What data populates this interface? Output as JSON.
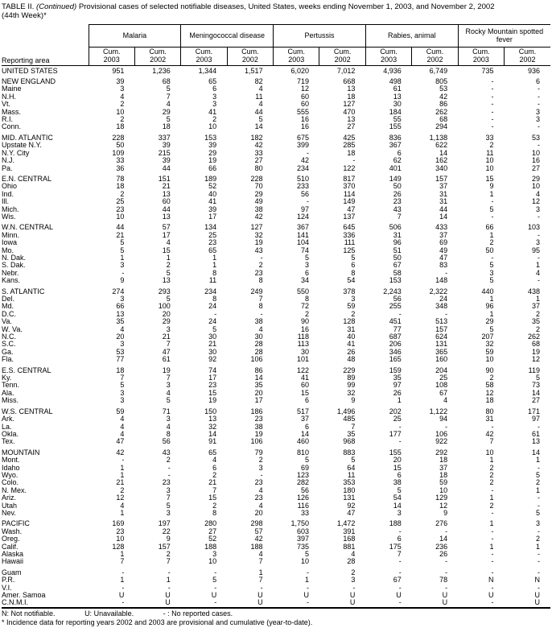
{
  "title": {
    "prefix": "TABLE II.",
    "continued": "(Continued)",
    "rest": "Provisional cases of selected notifiable diseases, United States, weeks ending November 1, 2003, and November 2, 2002",
    "line2": "(44th Week)*"
  },
  "table": {
    "row_header": "Reporting area",
    "col_groups": [
      "Malaria",
      "Meningococcal disease",
      "Pertussis",
      "Rabies, animal",
      "Rocky Mountain spotted fever"
    ],
    "sub_col_top": "Cum.",
    "sub_col_years": [
      "2003",
      "2002"
    ],
    "sections": [
      {
        "rows": [
          [
            "UNITED STATES",
            "951",
            "1,236",
            "1,344",
            "1,517",
            "6,020",
            "7,012",
            "4,936",
            "6,749",
            "735",
            "936"
          ]
        ]
      },
      {
        "rows": [
          [
            "NEW ENGLAND",
            "39",
            "68",
            "65",
            "82",
            "719",
            "668",
            "498",
            "805",
            "-",
            "6"
          ],
          [
            "Maine",
            "3",
            "5",
            "6",
            "4",
            "12",
            "13",
            "61",
            "53",
            "-",
            "-"
          ],
          [
            "N.H.",
            "4",
            "7",
            "3",
            "11",
            "60",
            "18",
            "13",
            "42",
            "-",
            "-"
          ],
          [
            "Vt.",
            "2",
            "4",
            "3",
            "4",
            "60",
            "127",
            "30",
            "86",
            "-",
            "-"
          ],
          [
            "Mass.",
            "10",
            "29",
            "41",
            "44",
            "555",
            "470",
            "184",
            "262",
            "-",
            "3"
          ],
          [
            "R.I.",
            "2",
            "5",
            "2",
            "5",
            "16",
            "13",
            "55",
            "68",
            "-",
            "3"
          ],
          [
            "Conn.",
            "18",
            "18",
            "10",
            "14",
            "16",
            "27",
            "155",
            "294",
            "-",
            "-"
          ]
        ]
      },
      {
        "rows": [
          [
            "MID. ATLANTIC",
            "228",
            "337",
            "153",
            "182",
            "675",
            "425",
            "836",
            "1,138",
            "33",
            "53"
          ],
          [
            "Upstate N.Y.",
            "50",
            "39",
            "39",
            "42",
            "399",
            "285",
            "367",
            "622",
            "2",
            "-"
          ],
          [
            "N.Y. City",
            "109",
            "215",
            "29",
            "33",
            "-",
            "18",
            "6",
            "14",
            "11",
            "10"
          ],
          [
            "N.J.",
            "33",
            "39",
            "19",
            "27",
            "42",
            "-",
            "62",
            "162",
            "10",
            "16"
          ],
          [
            "Pa.",
            "36",
            "44",
            "66",
            "80",
            "234",
            "122",
            "401",
            "340",
            "10",
            "27"
          ]
        ]
      },
      {
        "rows": [
          [
            "E.N. CENTRAL",
            "78",
            "151",
            "189",
            "228",
            "510",
            "817",
            "149",
            "157",
            "15",
            "29"
          ],
          [
            "Ohio",
            "18",
            "21",
            "52",
            "70",
            "233",
            "370",
            "50",
            "37",
            "9",
            "10"
          ],
          [
            "Ind.",
            "2",
            "13",
            "40",
            "29",
            "56",
            "114",
            "26",
            "31",
            "1",
            "4"
          ],
          [
            "Ill.",
            "25",
            "60",
            "41",
            "49",
            "-",
            "149",
            "23",
            "31",
            "-",
            "12"
          ],
          [
            "Mich.",
            "23",
            "44",
            "39",
            "38",
            "97",
            "47",
            "43",
            "44",
            "5",
            "3"
          ],
          [
            "Wis.",
            "10",
            "13",
            "17",
            "42",
            "124",
            "137",
            "7",
            "14",
            "-",
            "-"
          ]
        ]
      },
      {
        "rows": [
          [
            "W.N. CENTRAL",
            "44",
            "57",
            "134",
            "127",
            "367",
            "645",
            "506",
            "433",
            "66",
            "103"
          ],
          [
            "Minn.",
            "21",
            "17",
            "25",
            "32",
            "141",
            "336",
            "31",
            "37",
            "1",
            "-"
          ],
          [
            "Iowa",
            "5",
            "4",
            "23",
            "19",
            "104",
            "111",
            "96",
            "69",
            "2",
            "3"
          ],
          [
            "Mo.",
            "5",
            "15",
            "65",
            "43",
            "74",
            "125",
            "51",
            "49",
            "50",
            "95"
          ],
          [
            "N. Dak.",
            "1",
            "1",
            "1",
            "-",
            "5",
            "5",
            "50",
            "47",
            "-",
            "-"
          ],
          [
            "S. Dak.",
            "3",
            "2",
            "1",
            "2",
            "3",
            "6",
            "67",
            "83",
            "5",
            "1"
          ],
          [
            "Nebr.",
            "-",
            "5",
            "8",
            "23",
            "6",
            "8",
            "58",
            "-",
            "3",
            "4"
          ],
          [
            "Kans.",
            "9",
            "13",
            "11",
            "8",
            "34",
            "54",
            "153",
            "148",
            "5",
            "-"
          ]
        ]
      },
      {
        "rows": [
          [
            "S. ATLANTIC",
            "274",
            "293",
            "234",
            "249",
            "550",
            "378",
            "2,243",
            "2,322",
            "440",
            "438"
          ],
          [
            "Del.",
            "3",
            "5",
            "8",
            "7",
            "8",
            "3",
            "56",
            "24",
            "1",
            "1"
          ],
          [
            "Md.",
            "66",
            "100",
            "24",
            "8",
            "72",
            "59",
            "255",
            "348",
            "96",
            "37"
          ],
          [
            "D.C.",
            "13",
            "20",
            "-",
            "-",
            "2",
            "2",
            "-",
            "-",
            "1",
            "2"
          ],
          [
            "Va.",
            "35",
            "29",
            "24",
            "38",
            "90",
            "128",
            "451",
            "513",
            "29",
            "35"
          ],
          [
            "W. Va.",
            "4",
            "3",
            "5",
            "4",
            "16",
            "31",
            "77",
            "157",
            "5",
            "2"
          ],
          [
            "N.C.",
            "20",
            "21",
            "30",
            "30",
            "118",
            "40",
            "687",
            "624",
            "207",
            "262"
          ],
          [
            "S.C.",
            "3",
            "7",
            "21",
            "28",
            "113",
            "41",
            "206",
            "131",
            "32",
            "68"
          ],
          [
            "Ga.",
            "53",
            "47",
            "30",
            "28",
            "30",
            "26",
            "346",
            "365",
            "59",
            "19"
          ],
          [
            "Fla.",
            "77",
            "61",
            "92",
            "106",
            "101",
            "48",
            "165",
            "160",
            "10",
            "12"
          ]
        ]
      },
      {
        "rows": [
          [
            "E.S. CENTRAL",
            "18",
            "19",
            "74",
            "86",
            "122",
            "229",
            "159",
            "204",
            "90",
            "119"
          ],
          [
            "Ky.",
            "7",
            "7",
            "17",
            "14",
            "41",
            "89",
            "35",
            "25",
            "2",
            "5"
          ],
          [
            "Tenn.",
            "5",
            "3",
            "23",
            "35",
            "60",
            "99",
            "97",
            "108",
            "58",
            "73"
          ],
          [
            "Ala.",
            "3",
            "4",
            "15",
            "20",
            "15",
            "32",
            "26",
            "67",
            "12",
            "14"
          ],
          [
            "Miss.",
            "3",
            "5",
            "19",
            "17",
            "6",
            "9",
            "1",
            "4",
            "18",
            "27"
          ]
        ]
      },
      {
        "rows": [
          [
            "W.S. CENTRAL",
            "59",
            "71",
            "150",
            "186",
            "517",
            "1,496",
            "202",
            "1,122",
            "80",
            "171"
          ],
          [
            "Ark.",
            "4",
            "3",
            "13",
            "23",
            "37",
            "485",
            "25",
            "94",
            "31",
            "97"
          ],
          [
            "La.",
            "4",
            "4",
            "32",
            "38",
            "6",
            "7",
            "-",
            "-",
            "-",
            "-"
          ],
          [
            "Okla.",
            "4",
            "8",
            "14",
            "19",
            "14",
            "35",
            "177",
            "106",
            "42",
            "61"
          ],
          [
            "Tex.",
            "47",
            "56",
            "91",
            "106",
            "460",
            "968",
            "-",
            "922",
            "7",
            "13"
          ]
        ]
      },
      {
        "rows": [
          [
            "MOUNTAIN",
            "42",
            "43",
            "65",
            "79",
            "810",
            "883",
            "155",
            "292",
            "10",
            "14"
          ],
          [
            "Mont.",
            "-",
            "2",
            "4",
            "2",
            "5",
            "5",
            "20",
            "18",
            "1",
            "1"
          ],
          [
            "Idaho",
            "1",
            "-",
            "6",
            "3",
            "69",
            "64",
            "15",
            "37",
            "2",
            "-"
          ],
          [
            "Wyo.",
            "1",
            "-",
            "2",
            "-",
            "123",
            "11",
            "6",
            "18",
            "2",
            "5"
          ],
          [
            "Colo.",
            "21",
            "23",
            "21",
            "23",
            "282",
            "353",
            "38",
            "59",
            "2",
            "2"
          ],
          [
            "N. Mex.",
            "2",
            "3",
            "7",
            "4",
            "56",
            "180",
            "5",
            "10",
            "-",
            "1"
          ],
          [
            "Ariz.",
            "12",
            "7",
            "15",
            "23",
            "126",
            "131",
            "54",
            "129",
            "1",
            "-"
          ],
          [
            "Utah",
            "4",
            "5",
            "2",
            "4",
            "116",
            "92",
            "14",
            "12",
            "2",
            "-"
          ],
          [
            "Nev.",
            "1",
            "3",
            "8",
            "20",
            "33",
            "47",
            "3",
            "9",
            "-",
            "5"
          ]
        ]
      },
      {
        "rows": [
          [
            "PACIFIC",
            "169",
            "197",
            "280",
            "298",
            "1,750",
            "1,472",
            "188",
            "276",
            "1",
            "3"
          ],
          [
            "Wash.",
            "23",
            "22",
            "27",
            "57",
            "603",
            "391",
            "-",
            "-",
            "-",
            "-"
          ],
          [
            "Oreg.",
            "10",
            "9",
            "52",
            "42",
            "397",
            "168",
            "6",
            "14",
            "-",
            "2"
          ],
          [
            "Calif.",
            "128",
            "157",
            "188",
            "188",
            "735",
            "881",
            "175",
            "236",
            "1",
            "1"
          ],
          [
            "Alaska",
            "1",
            "2",
            "3",
            "4",
            "5",
            "4",
            "7",
            "26",
            "-",
            "-"
          ],
          [
            "Hawaii",
            "7",
            "7",
            "10",
            "7",
            "10",
            "28",
            "-",
            "-",
            "-",
            "-"
          ]
        ]
      },
      {
        "rows": [
          [
            "Guam",
            "-",
            "-",
            "-",
            "1",
            "-",
            "2",
            "-",
            "-",
            "-",
            "-"
          ],
          [
            "P.R.",
            "1",
            "1",
            "5",
            "7",
            "1",
            "3",
            "67",
            "78",
            "N",
            "N"
          ],
          [
            "V.I.",
            "-",
            "-",
            "-",
            "-",
            "-",
            "-",
            "-",
            "-",
            "-",
            "-"
          ],
          [
            "Amer. Samoa",
            "U",
            "U",
            "U",
            "U",
            "U",
            "U",
            "U",
            "U",
            "U",
            "U"
          ],
          [
            "C.N.M.I.",
            "-",
            "U",
            "-",
            "U",
            "-",
            "U",
            "-",
            "U",
            "-",
            "U"
          ]
        ]
      }
    ]
  },
  "footnotes": {
    "legend_n": "N: Not notifiable.",
    "legend_u": "U: Unavailable.",
    "legend_dash": "- : No reported cases.",
    "note": "* Incidence data for reporting years 2002 and 2003 are provisional and cumulative (year-to-date)."
  }
}
